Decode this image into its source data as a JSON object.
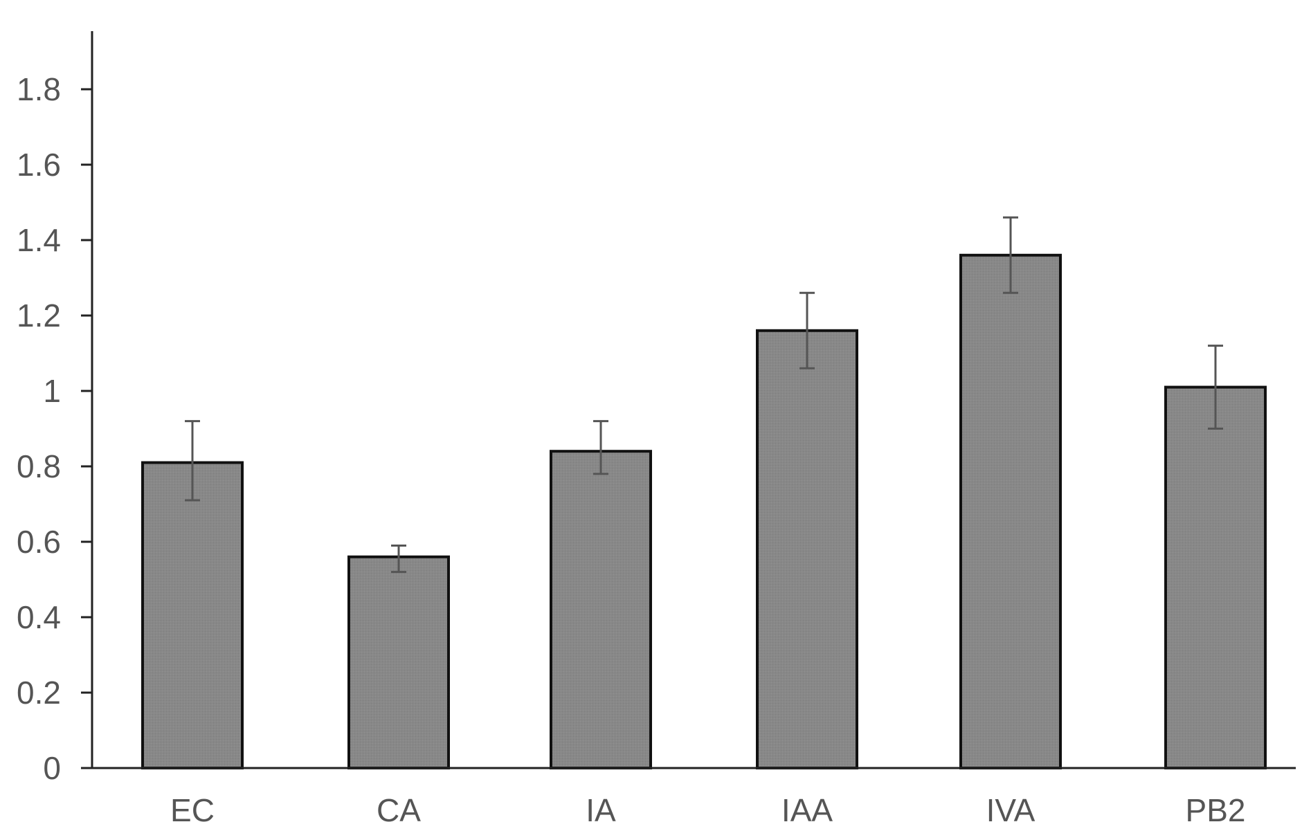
{
  "chart_data": {
    "type": "bar",
    "title": "",
    "xlabel": "",
    "ylabel": "",
    "categories": [
      "EC",
      "CA",
      "IA",
      "IAA",
      "IVA",
      "PB2"
    ],
    "values": [
      0.81,
      0.56,
      0.84,
      1.16,
      1.36,
      1.01
    ],
    "error_upper": [
      0.92,
      0.59,
      0.92,
      1.26,
      1.46,
      1.12
    ],
    "error_lower": [
      0.71,
      0.52,
      0.78,
      1.06,
      1.26,
      0.9
    ],
    "ylim": [
      0,
      1.95
    ],
    "yticks": [
      0,
      0.2,
      0.4,
      0.6,
      0.8,
      1,
      1.2,
      1.4,
      1.6,
      1.8
    ],
    "ytick_labels": [
      "0",
      "0.2",
      "0.4",
      "0.6",
      "0.8",
      "1",
      "1.2",
      "1.4",
      "1.6",
      "1.8"
    ],
    "grid": false,
    "legend": "none",
    "bar_color": "#888888",
    "bar_edge_color": "#111111",
    "errorbar_color": "#555555",
    "axis_color": "#222222",
    "label_color": "#555555"
  }
}
